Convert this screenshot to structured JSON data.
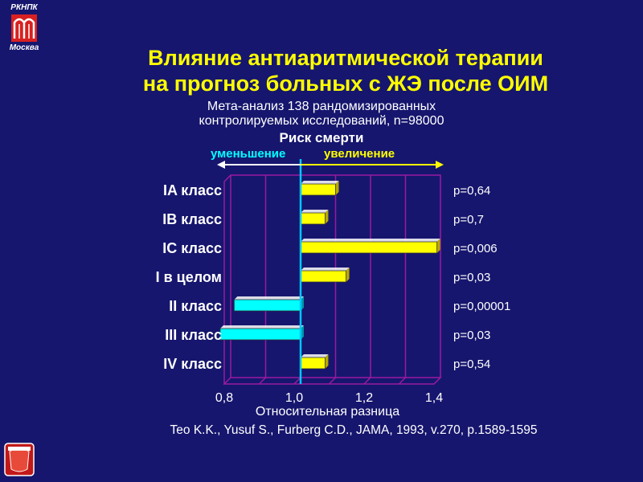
{
  "logo": {
    "brand": "РКНПК",
    "city": "Москва"
  },
  "title_lines": [
    "Влияние антиаритмической терапии",
    "на прогноз больных с ЖЭ после ОИМ"
  ],
  "subtitle_lines": [
    "Мета-анализ 138 рандомизированных",
    "контролируемых исследований, n=98000"
  ],
  "risk_label": "Риск смерти",
  "direction": {
    "decrease": "уменьшение",
    "increase": "увеличение"
  },
  "citation": "Teo K.K., Yusuf S., Furberg C.D., JAMA, 1993, v.270, p.1589-1595",
  "colors": {
    "background": "#16166e",
    "title": "#ffff00",
    "increase_bar": "#ffff00",
    "decrease_bar": "#00ffff",
    "reference_line": "#00c8ff",
    "grid": "#9a1aa0"
  },
  "chart_data": {
    "type": "bar",
    "orientation": "horizontal",
    "categories": [
      "IA класс",
      "IB класс",
      "IC класс",
      "I в целом",
      "II класс",
      "III класс",
      "IV класс"
    ],
    "values": [
      1.1,
      1.07,
      1.39,
      1.13,
      0.81,
      0.77,
      1.07
    ],
    "p_values": [
      "p=0,64",
      "p=0,7",
      "p=0,006",
      "p=0,03",
      "p=0,00001",
      "p=0,03",
      "p=0,54"
    ],
    "reference": 1.0,
    "xlabel": "Относительная разница",
    "xlim": [
      0.8,
      1.4
    ],
    "xticks": [
      0.8,
      1.0,
      1.2,
      1.4
    ],
    "xtick_labels": [
      "0,8",
      "1,0",
      "1,2",
      "1,4"
    ],
    "grid": true
  }
}
